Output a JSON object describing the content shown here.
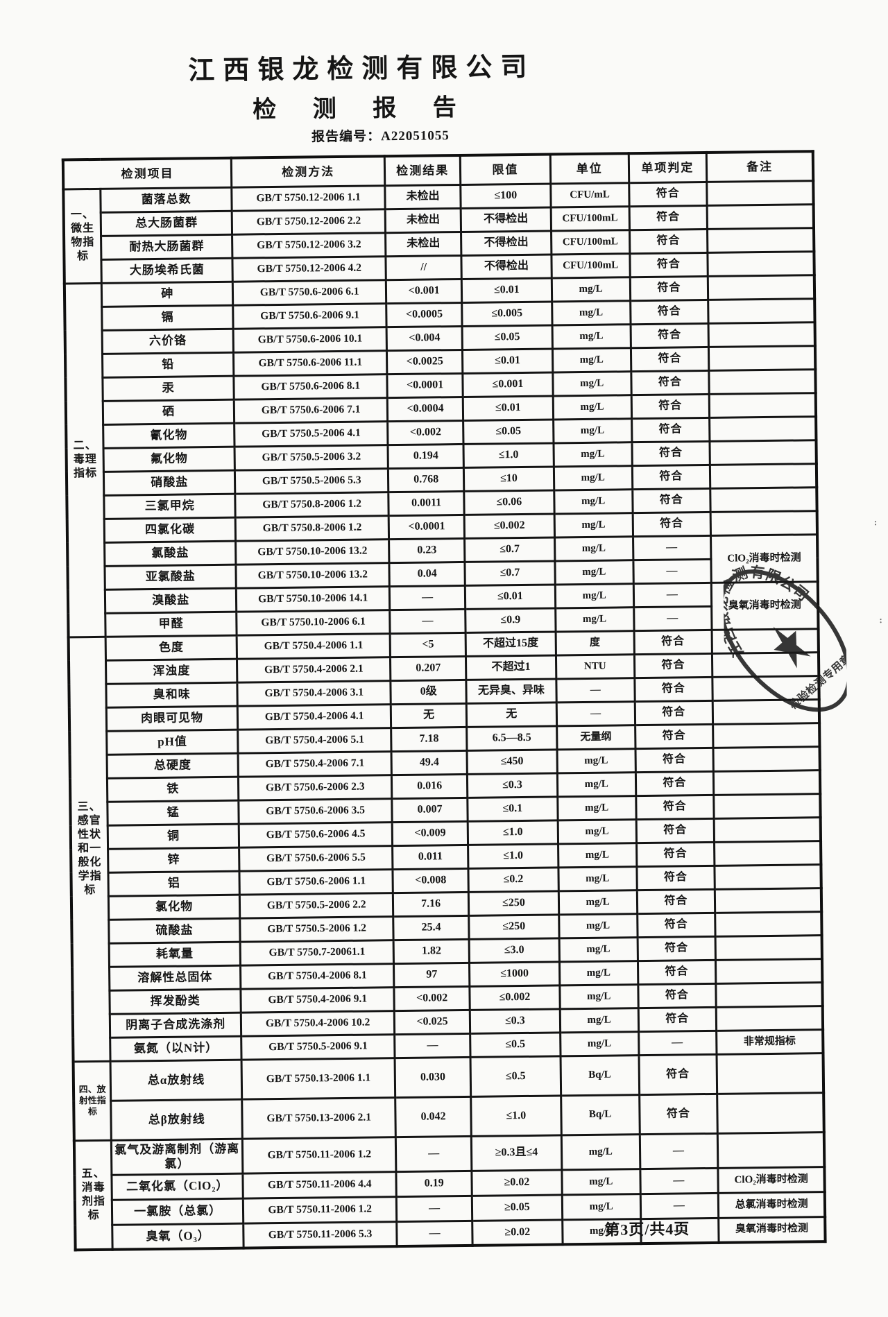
{
  "header": {
    "company": "江西银龙检测有限公司",
    "title": "检 测 报 告",
    "report_no_label": "报告编号：",
    "report_no": "A22051055"
  },
  "table": {
    "headers": [
      "检测项目",
      "检测方法",
      "检测结果",
      "限值",
      "单位",
      "单项判定",
      "备注"
    ],
    "groups": [
      {
        "label": "一、\n微生\n物指\n标",
        "rows": [
          {
            "item": "菌落总数",
            "method": "GB/T 5750.12-2006 1.1",
            "result": "未检出",
            "limit": "≤100",
            "unit": "CFU/mL",
            "judgment": "符合",
            "remark": ""
          },
          {
            "item": "总大肠菌群",
            "method": "GB/T 5750.12-2006 2.2",
            "result": "未检出",
            "limit": "不得检出",
            "unit": "CFU/100mL",
            "judgment": "符合",
            "remark": ""
          },
          {
            "item": "耐热大肠菌群",
            "method": "GB/T 5750.12-2006 3.2",
            "result": "未检出",
            "limit": "不得检出",
            "unit": "CFU/100mL",
            "judgment": "符合",
            "remark": ""
          },
          {
            "item": "大肠埃希氏菌",
            "method": "GB/T 5750.12-2006 4.2",
            "result": "//",
            "limit": "不得检出",
            "unit": "CFU/100mL",
            "judgment": "符合",
            "remark": ""
          }
        ]
      },
      {
        "label": "二、\n毒理\n指标",
        "rows": [
          {
            "item": "砷",
            "method": "GB/T 5750.6-2006 6.1",
            "result": "<0.001",
            "limit": "≤0.01",
            "unit": "mg/L",
            "judgment": "符合",
            "remark": ""
          },
          {
            "item": "镉",
            "method": "GB/T 5750.6-2006 9.1",
            "result": "<0.0005",
            "limit": "≤0.005",
            "unit": "mg/L",
            "judgment": "符合",
            "remark": ""
          },
          {
            "item": "六价铬",
            "method": "GB/T 5750.6-2006 10.1",
            "result": "<0.004",
            "limit": "≤0.05",
            "unit": "mg/L",
            "judgment": "符合",
            "remark": ""
          },
          {
            "item": "铅",
            "method": "GB/T 5750.6-2006 11.1",
            "result": "<0.0025",
            "limit": "≤0.01",
            "unit": "mg/L",
            "judgment": "符合",
            "remark": ""
          },
          {
            "item": "汞",
            "method": "GB/T 5750.6-2006 8.1",
            "result": "<0.0001",
            "limit": "≤0.001",
            "unit": "mg/L",
            "judgment": "符合",
            "remark": ""
          },
          {
            "item": "硒",
            "method": "GB/T 5750.6-2006 7.1",
            "result": "<0.0004",
            "limit": "≤0.01",
            "unit": "mg/L",
            "judgment": "符合",
            "remark": ""
          },
          {
            "item": "氰化物",
            "method": "GB/T 5750.5-2006 4.1",
            "result": "<0.002",
            "limit": "≤0.05",
            "unit": "mg/L",
            "judgment": "符合",
            "remark": ""
          },
          {
            "item": "氟化物",
            "method": "GB/T 5750.5-2006 3.2",
            "result": "0.194",
            "limit": "≤1.0",
            "unit": "mg/L",
            "judgment": "符合",
            "remark": ""
          },
          {
            "item": "硝酸盐",
            "method": "GB/T 5750.5-2006 5.3",
            "result": "0.768",
            "limit": "≤10",
            "unit": "mg/L",
            "judgment": "符合",
            "remark": ""
          },
          {
            "item": "三氯甲烷",
            "method": "GB/T 5750.8-2006 1.2",
            "result": "0.0011",
            "limit": "≤0.06",
            "unit": "mg/L",
            "judgment": "符合",
            "remark": ""
          },
          {
            "item": "四氯化碳",
            "method": "GB/T 5750.8-2006 1.2",
            "result": "<0.0001",
            "limit": "≤0.002",
            "unit": "mg/L",
            "judgment": "符合",
            "remark": ""
          },
          {
            "item": "氯酸盐",
            "method": "GB/T 5750.10-2006 13.2",
            "result": "0.23",
            "limit": "≤0.7",
            "unit": "mg/L",
            "judgment": "—",
            "remark": "ClO₂消毒时检测",
            "remark_span": 2
          },
          {
            "item": "亚氯酸盐",
            "method": "GB/T 5750.10-2006 13.2",
            "result": "0.04",
            "limit": "≤0.7",
            "unit": "mg/L",
            "judgment": "—",
            "remark": "@skip"
          },
          {
            "item": "溴酸盐",
            "method": "GB/T 5750.10-2006 14.1",
            "result": "—",
            "limit": "≤0.01",
            "unit": "mg/L",
            "judgment": "—",
            "remark": "臭氧消毒时检测",
            "remark_span": 2
          },
          {
            "item": "甲醛",
            "method": "GB/T 5750.10-2006 6.1",
            "result": "—",
            "limit": "≤0.9",
            "unit": "mg/L",
            "judgment": "—",
            "remark": "@skip"
          }
        ]
      },
      {
        "label": "三、\n感官\n性状\n和一\n般化\n学指\n标",
        "rows": [
          {
            "item": "色度",
            "method": "GB/T 5750.4-2006 1.1",
            "result": "<5",
            "limit": "不超过15度",
            "unit": "度",
            "judgment": "符合",
            "remark": ""
          },
          {
            "item": "浑浊度",
            "method": "GB/T 5750.4-2006 2.1",
            "result": "0.207",
            "limit": "不超过1",
            "unit": "NTU",
            "judgment": "符合",
            "remark": ""
          },
          {
            "item": "臭和味",
            "method": "GB/T 5750.4-2006 3.1",
            "result": "0级",
            "limit": "无异臭、异味",
            "unit": "—",
            "judgment": "符合",
            "remark": ""
          },
          {
            "item": "肉眼可见物",
            "method": "GB/T 5750.4-2006 4.1",
            "result": "无",
            "limit": "无",
            "unit": "—",
            "judgment": "符合",
            "remark": ""
          },
          {
            "item": "pH值",
            "method": "GB/T 5750.4-2006 5.1",
            "result": "7.18",
            "limit": "6.5—8.5",
            "unit": "无量纲",
            "judgment": "符合",
            "remark": ""
          },
          {
            "item": "总硬度",
            "method": "GB/T 5750.4-2006 7.1",
            "result": "49.4",
            "limit": "≤450",
            "unit": "mg/L",
            "judgment": "符合",
            "remark": ""
          },
          {
            "item": "铁",
            "method": "GB/T 5750.6-2006 2.3",
            "result": "0.016",
            "limit": "≤0.3",
            "unit": "mg/L",
            "judgment": "符合",
            "remark": ""
          },
          {
            "item": "锰",
            "method": "GB/T 5750.6-2006 3.5",
            "result": "0.007",
            "limit": "≤0.1",
            "unit": "mg/L",
            "judgment": "符合",
            "remark": ""
          },
          {
            "item": "铜",
            "method": "GB/T 5750.6-2006 4.5",
            "result": "<0.009",
            "limit": "≤1.0",
            "unit": "mg/L",
            "judgment": "符合",
            "remark": ""
          },
          {
            "item": "锌",
            "method": "GB/T 5750.6-2006 5.5",
            "result": "0.011",
            "limit": "≤1.0",
            "unit": "mg/L",
            "judgment": "符合",
            "remark": ""
          },
          {
            "item": "铝",
            "method": "GB/T 5750.6-2006 1.1",
            "result": "<0.008",
            "limit": "≤0.2",
            "unit": "mg/L",
            "judgment": "符合",
            "remark": ""
          },
          {
            "item": "氯化物",
            "method": "GB/T 5750.5-2006 2.2",
            "result": "7.16",
            "limit": "≤250",
            "unit": "mg/L",
            "judgment": "符合",
            "remark": ""
          },
          {
            "item": "硫酸盐",
            "method": "GB/T 5750.5-2006 1.2",
            "result": "25.4",
            "limit": "≤250",
            "unit": "mg/L",
            "judgment": "符合",
            "remark": ""
          },
          {
            "item": "耗氧量",
            "method": "GB/T 5750.7-20061.1",
            "result": "1.82",
            "limit": "≤3.0",
            "unit": "mg/L",
            "judgment": "符合",
            "remark": ""
          },
          {
            "item": "溶解性总固体",
            "method": "GB/T 5750.4-2006 8.1",
            "result": "97",
            "limit": "≤1000",
            "unit": "mg/L",
            "judgment": "符合",
            "remark": ""
          },
          {
            "item": "挥发酚类",
            "method": "GB/T 5750.4-2006 9.1",
            "result": "<0.002",
            "limit": "≤0.002",
            "unit": "mg/L",
            "judgment": "符合",
            "remark": ""
          },
          {
            "item": "阴离子合成洗涤剂",
            "method": "GB/T 5750.4-2006 10.2",
            "result": "<0.025",
            "limit": "≤0.3",
            "unit": "mg/L",
            "judgment": "符合",
            "remark": ""
          },
          {
            "item": "氨氮（以N计）",
            "method": "GB/T 5750.5-2006 9.1",
            "result": "—",
            "limit": "≤0.5",
            "unit": "mg/L",
            "judgment": "—",
            "remark": "非常规指标"
          }
        ]
      },
      {
        "label": "四、放\n射性指\n标",
        "rows": [
          {
            "item": "总α放射线",
            "method": "GB/T 5750.13-2006 1.1",
            "result": "0.030",
            "limit": "≤0.5",
            "unit": "Bq/L",
            "judgment": "符合",
            "remark": ""
          },
          {
            "item": "总β放射线",
            "method": "GB/T 5750.13-2006 2.1",
            "result": "0.042",
            "limit": "≤1.0",
            "unit": "Bq/L",
            "judgment": "符合",
            "remark": ""
          }
        ]
      },
      {
        "label": "五、\n消毒\n剂指\n标",
        "rows": [
          {
            "item": "氯气及游离制剂（游离氯）",
            "method": "GB/T 5750.11-2006 1.2",
            "result": "—",
            "limit": "≥0.3且≤4",
            "unit": "mg/L",
            "judgment": "—",
            "remark": ""
          },
          {
            "item": "二氧化氯（ClO₂）",
            "method": "GB/T 5750.11-2006 4.4",
            "result": "0.19",
            "limit": "≥0.02",
            "unit": "mg/L",
            "judgment": "—",
            "remark": "ClO₂消毒时检测"
          },
          {
            "item": "一氯胺（总氯）",
            "method": "GB/T 5750.11-2006 1.2",
            "result": "—",
            "limit": "≥0.05",
            "unit": "mg/L",
            "judgment": "—",
            "remark": "总氯消毒时检测"
          },
          {
            "item": "臭氧（O₃）",
            "method": "GB/T 5750.11-2006 5.3",
            "result": "—",
            "limit": "≥0.02",
            "unit": "mg/L",
            "judgment": "—",
            "remark": "臭氧消毒时检测"
          }
        ]
      }
    ]
  },
  "stamp": {
    "ring_text": "江西银龙检测有限公司",
    "banner_text": "检验检测专用章"
  },
  "footer": {
    "page_indicator": "第3页/共4页"
  }
}
